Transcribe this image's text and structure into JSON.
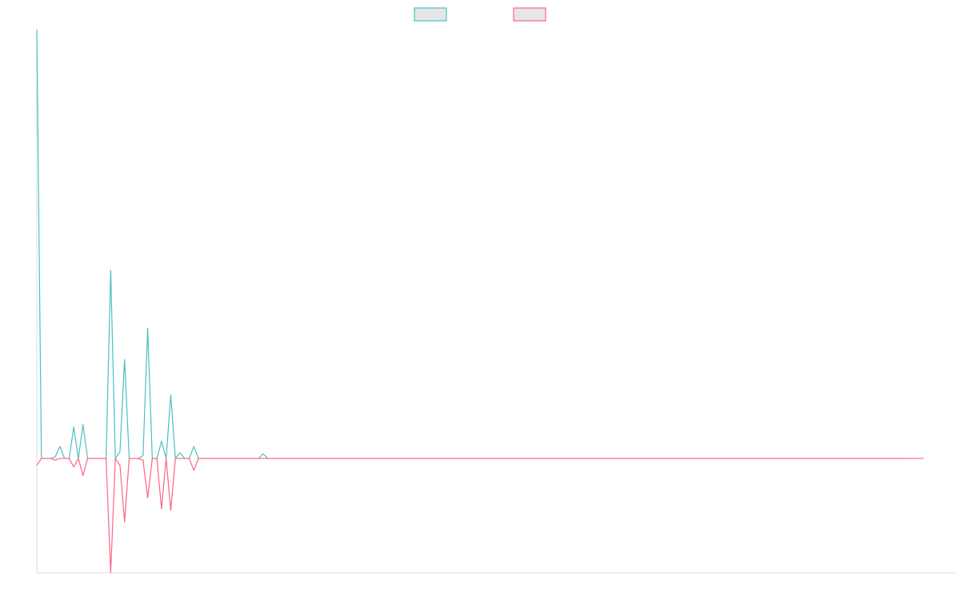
{
  "chart_data": {
    "type": "line",
    "title": "",
    "xlabel": "",
    "ylabel": "",
    "legend_position": "top-center",
    "grid": false,
    "ylim": [
      -20,
      75
    ],
    "xlim": [
      0,
      199
    ],
    "series": [
      {
        "color": "#4bc0c0",
        "values": [
          75,
          0,
          0,
          0,
          0.3,
          2.1,
          0,
          0,
          5.5,
          0,
          5.9,
          0,
          0,
          0,
          0,
          0,
          32.9,
          0,
          1.2,
          17.3,
          0,
          0,
          0,
          0.5,
          22.8,
          0,
          0,
          3.0,
          0,
          11.1,
          0,
          1.0,
          0,
          0,
          2.1,
          0,
          0,
          0,
          0,
          0,
          0,
          0,
          0,
          0,
          0,
          0,
          0,
          0,
          0,
          0.8,
          0,
          0,
          0,
          0,
          0,
          0,
          0,
          0,
          0,
          0,
          0,
          0,
          0,
          0,
          0,
          0,
          0,
          0,
          0,
          0,
          0,
          0,
          0,
          0,
          0,
          0,
          0,
          0,
          0,
          0,
          0,
          0,
          0,
          0,
          0,
          0,
          0,
          0,
          0,
          0,
          0,
          0,
          0,
          0,
          0,
          0,
          0,
          0,
          0,
          0,
          0,
          0,
          0,
          0,
          0,
          0,
          0,
          0,
          0,
          0,
          0,
          0,
          0,
          0,
          0,
          0,
          0,
          0,
          0,
          0,
          0,
          0,
          0,
          0,
          0,
          0,
          0,
          0,
          0,
          0,
          0,
          0,
          0,
          0,
          0,
          0,
          0,
          0,
          0,
          0,
          0,
          0,
          0,
          0,
          0,
          0,
          0,
          0,
          0,
          0,
          0,
          0,
          0,
          0,
          0,
          0,
          0,
          0,
          0,
          0,
          0,
          0,
          0,
          0,
          0,
          0,
          0,
          0,
          0,
          0,
          0,
          0,
          0,
          0,
          0,
          0,
          0,
          0,
          0,
          0,
          0,
          0,
          0,
          0,
          0,
          0,
          0,
          0,
          0,
          0
        ]
      },
      {
        "color": "#ff6384",
        "values": [
          -1.2,
          0,
          0,
          0,
          -0.3,
          0,
          0,
          0,
          -1.5,
          0,
          -3.0,
          0,
          0,
          0,
          0,
          0,
          -20,
          0,
          -1.2,
          -11.1,
          0,
          0,
          0,
          -0.3,
          -6.9,
          0,
          0,
          -8.8,
          0,
          -9.1,
          0,
          0,
          0,
          0,
          -2.1,
          0,
          0,
          0,
          0,
          0,
          0,
          0,
          0,
          0,
          0,
          0,
          0,
          0,
          0,
          0,
          0,
          0,
          0,
          0,
          0,
          0,
          0,
          0,
          0,
          0,
          0,
          0,
          0,
          0,
          0,
          0,
          0,
          0,
          0,
          0,
          0,
          0,
          0,
          0,
          0,
          0,
          0,
          0,
          0,
          0,
          0,
          0,
          0,
          0,
          0,
          0,
          0,
          0,
          0,
          0,
          0,
          0,
          0,
          0,
          0,
          0,
          0,
          0,
          0,
          0,
          0,
          0,
          0,
          0,
          0,
          0,
          0,
          0,
          0,
          0,
          0,
          0,
          0,
          0,
          0,
          0,
          0,
          0,
          0,
          0,
          0,
          0,
          0,
          0,
          0,
          0,
          0,
          0,
          0,
          0,
          0,
          0,
          0,
          0,
          0,
          0,
          0,
          0,
          0,
          0,
          0,
          0,
          0,
          0,
          0,
          0,
          0,
          0,
          0,
          0,
          0,
          0,
          0,
          0,
          0,
          0,
          0,
          0,
          0,
          0,
          0,
          0,
          0,
          0,
          0,
          0,
          0,
          0,
          0,
          0,
          0,
          0,
          0,
          0,
          0,
          0,
          0,
          0,
          0,
          0,
          0,
          0,
          0,
          0,
          0,
          0,
          0,
          0,
          0,
          0,
          0,
          0,
          0
        ]
      }
    ]
  }
}
